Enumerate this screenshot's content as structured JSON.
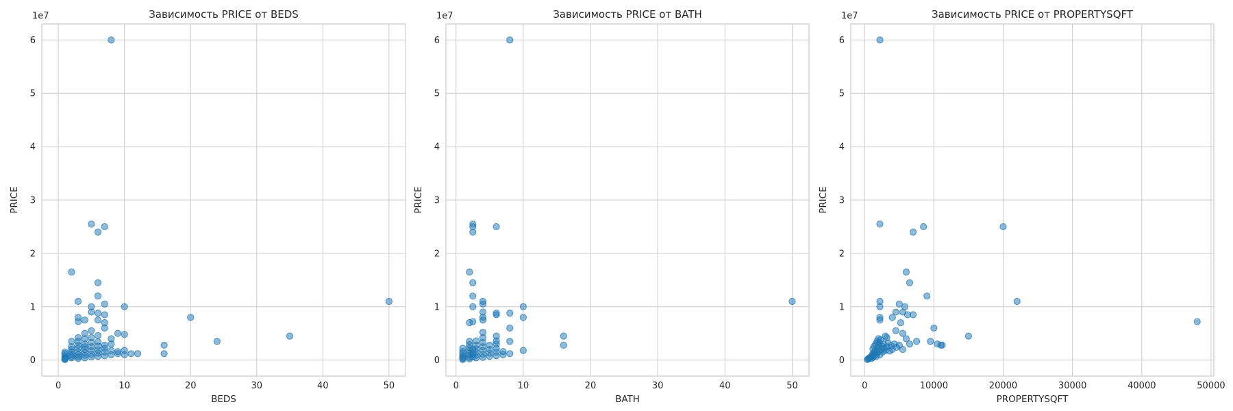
{
  "chart_data": [
    {
      "type": "scatter",
      "title": "Зависимость PRICE от BEDS",
      "xlabel": "BEDS",
      "ylabel": "PRICE",
      "y_offset_label": "1e7",
      "xlim": [
        -2.5,
        52.5
      ],
      "ylim": [
        -3000000,
        63000000
      ],
      "x_ticks": [
        0,
        10,
        20,
        30,
        40,
        50
      ],
      "x_tick_labels": [
        "0",
        "10",
        "20",
        "30",
        "40",
        "50"
      ],
      "y_ticks": [
        0,
        10000000,
        20000000,
        30000000,
        40000000,
        50000000,
        60000000
      ],
      "y_tick_labels": [
        "0",
        "1",
        "2",
        "3",
        "4",
        "5",
        "6"
      ],
      "grid": true,
      "color": "#1f77b4",
      "points": [
        [
          1,
          300000
        ],
        [
          1,
          500000
        ],
        [
          1,
          800000
        ],
        [
          1,
          1200000
        ],
        [
          1,
          1500000
        ],
        [
          1,
          200000
        ],
        [
          1,
          100000
        ],
        [
          2,
          400000
        ],
        [
          2,
          700000
        ],
        [
          2,
          1000000
        ],
        [
          2,
          1500000
        ],
        [
          2,
          2000000
        ],
        [
          2,
          2500000
        ],
        [
          2,
          3500000
        ],
        [
          2,
          16500000
        ],
        [
          3,
          300000
        ],
        [
          3,
          600000
        ],
        [
          3,
          1000000
        ],
        [
          3,
          1500000
        ],
        [
          3,
          2200000
        ],
        [
          3,
          2800000
        ],
        [
          3,
          3500000
        ],
        [
          3,
          4200000
        ],
        [
          3,
          7200000
        ],
        [
          3,
          8000000
        ],
        [
          3,
          11000000
        ],
        [
          4,
          400000
        ],
        [
          4,
          900000
        ],
        [
          4,
          1400000
        ],
        [
          4,
          2000000
        ],
        [
          4,
          2500000
        ],
        [
          4,
          3000000
        ],
        [
          4,
          4000000
        ],
        [
          4,
          5000000
        ],
        [
          4,
          7500000
        ],
        [
          5,
          600000
        ],
        [
          5,
          1100000
        ],
        [
          5,
          1800000
        ],
        [
          5,
          2500000
        ],
        [
          5,
          3300000
        ],
        [
          5,
          4200000
        ],
        [
          5,
          5500000
        ],
        [
          5,
          9000000
        ],
        [
          5,
          10000000
        ],
        [
          5,
          25500000
        ],
        [
          6,
          700000
        ],
        [
          6,
          1300000
        ],
        [
          6,
          1900000
        ],
        [
          6,
          2600000
        ],
        [
          6,
          3400000
        ],
        [
          6,
          4600000
        ],
        [
          6,
          7500000
        ],
        [
          6,
          8800000
        ],
        [
          6,
          12000000
        ],
        [
          6,
          14500000
        ],
        [
          6,
          24000000
        ],
        [
          7,
          800000
        ],
        [
          7,
          1500000
        ],
        [
          7,
          2200000
        ],
        [
          7,
          2800000
        ],
        [
          7,
          6000000
        ],
        [
          7,
          7000000
        ],
        [
          7,
          8500000
        ],
        [
          7,
          10500000
        ],
        [
          7,
          25000000
        ],
        [
          8,
          1000000
        ],
        [
          8,
          1800000
        ],
        [
          8,
          3000000
        ],
        [
          8,
          4000000
        ],
        [
          8,
          60000000
        ],
        [
          9,
          1200000
        ],
        [
          9,
          1600000
        ],
        [
          9,
          5000000
        ],
        [
          10,
          1000000
        ],
        [
          10,
          1800000
        ],
        [
          10,
          4800000
        ],
        [
          10,
          10000000
        ],
        [
          11,
          1200000
        ],
        [
          12,
          1200000
        ],
        [
          16,
          1200000
        ],
        [
          16,
          2800000
        ],
        [
          20,
          8000000
        ],
        [
          24,
          3500000
        ],
        [
          35,
          4500000
        ],
        [
          50,
          11000000
        ]
      ]
    },
    {
      "type": "scatter",
      "title": "Зависимость PRICE от BATH",
      "xlabel": "BATH",
      "ylabel": "PRICE",
      "y_offset_label": "1e7",
      "xlim": [
        -1.5,
        52.5
      ],
      "ylim": [
        -3000000,
        63000000
      ],
      "x_ticks": [
        0,
        10,
        20,
        30,
        40,
        50
      ],
      "x_tick_labels": [
        "0",
        "10",
        "20",
        "30",
        "40",
        "50"
      ],
      "y_ticks": [
        0,
        10000000,
        20000000,
        30000000,
        40000000,
        50000000,
        60000000
      ],
      "y_tick_labels": [
        "0",
        "1",
        "2",
        "3",
        "4",
        "5",
        "6"
      ],
      "grid": true,
      "color": "#1f77b4",
      "points": [
        [
          1,
          100000
        ],
        [
          1,
          300000
        ],
        [
          1,
          500000
        ],
        [
          1,
          800000
        ],
        [
          1,
          1200000
        ],
        [
          1,
          1600000
        ],
        [
          1,
          2200000
        ],
        [
          2,
          200000
        ],
        [
          2,
          500000
        ],
        [
          2,
          900000
        ],
        [
          2,
          1300000
        ],
        [
          2,
          1800000
        ],
        [
          2,
          2300000
        ],
        [
          2,
          2900000
        ],
        [
          2,
          3500000
        ],
        [
          2,
          7000000
        ],
        [
          2,
          16500000
        ],
        [
          2.5,
          600000
        ],
        [
          2.5,
          1200000
        ],
        [
          2.5,
          2000000
        ],
        [
          2.5,
          7200000
        ],
        [
          2.5,
          10000000
        ],
        [
          2.5,
          12000000
        ],
        [
          2.5,
          14500000
        ],
        [
          2.5,
          24000000
        ],
        [
          2.5,
          25000000
        ],
        [
          2.5,
          25500000
        ],
        [
          3,
          400000
        ],
        [
          3,
          900000
        ],
        [
          3,
          1500000
        ],
        [
          3,
          2100000
        ],
        [
          3,
          2800000
        ],
        [
          3,
          3600000
        ],
        [
          4,
          500000
        ],
        [
          4,
          1100000
        ],
        [
          4,
          1800000
        ],
        [
          4,
          2500000
        ],
        [
          4,
          3300000
        ],
        [
          4,
          4200000
        ],
        [
          4,
          5200000
        ],
        [
          4,
          7500000
        ],
        [
          4,
          8000000
        ],
        [
          4,
          9000000
        ],
        [
          4,
          10500000
        ],
        [
          4,
          11000000
        ],
        [
          5,
          700000
        ],
        [
          5,
          1300000
        ],
        [
          5,
          2000000
        ],
        [
          5,
          2800000
        ],
        [
          6,
          800000
        ],
        [
          6,
          1500000
        ],
        [
          6,
          2200000
        ],
        [
          6,
          3000000
        ],
        [
          6,
          3600000
        ],
        [
          6,
          4500000
        ],
        [
          6,
          8500000
        ],
        [
          6,
          8800000
        ],
        [
          6,
          25000000
        ],
        [
          7,
          1000000
        ],
        [
          7,
          1600000
        ],
        [
          8,
          1200000
        ],
        [
          8,
          3500000
        ],
        [
          8,
          6000000
        ],
        [
          8,
          8800000
        ],
        [
          8,
          60000000
        ],
        [
          10,
          1800000
        ],
        [
          10,
          8000000
        ],
        [
          10,
          10000000
        ],
        [
          16,
          2800000
        ],
        [
          16,
          4500000
        ],
        [
          50,
          11000000
        ]
      ]
    },
    {
      "type": "scatter",
      "title": "Зависимость PRICE от PROPERTYSQFT",
      "xlabel": "PROPERTYSQFT",
      "ylabel": "PRICE",
      "y_offset_label": "1e7",
      "xlim": [
        -2000,
        50400
      ],
      "ylim": [
        -3000000,
        63000000
      ],
      "x_ticks": [
        0,
        10000,
        20000,
        30000,
        40000,
        50000
      ],
      "x_tick_labels": [
        "0",
        "10000",
        "20000",
        "30000",
        "40000",
        "50000"
      ],
      "y_ticks": [
        0,
        10000000,
        20000000,
        30000000,
        40000000,
        50000000,
        60000000
      ],
      "y_tick_labels": [
        "0",
        "1",
        "2",
        "3",
        "4",
        "5",
        "6"
      ],
      "grid": true,
      "color": "#1f77b4",
      "points": [
        [
          400,
          100000
        ],
        [
          500,
          200000
        ],
        [
          600,
          300000
        ],
        [
          700,
          400000
        ],
        [
          800,
          500000
        ],
        [
          900,
          600000
        ],
        [
          1000,
          700000
        ],
        [
          1000,
          300000
        ],
        [
          1100,
          900000
        ],
        [
          1200,
          500000
        ],
        [
          1200,
          1200000
        ],
        [
          1300,
          800000
        ],
        [
          1400,
          1500000
        ],
        [
          1500,
          1000000
        ],
        [
          1600,
          1800000
        ],
        [
          1700,
          700000
        ],
        [
          1800,
          1300000
        ],
        [
          1900,
          2200000
        ],
        [
          2000,
          1600000
        ],
        [
          2000,
          2800000
        ],
        [
          2100,
          3300000
        ],
        [
          2200,
          1000000
        ],
        [
          2300,
          3800000
        ],
        [
          2400,
          2000000
        ],
        [
          2500,
          2600000
        ],
        [
          2600,
          1500000
        ],
        [
          2700,
          3000000
        ],
        [
          2800,
          2200000
        ],
        [
          3000,
          1800000
        ],
        [
          3200,
          2500000
        ],
        [
          3400,
          3200000
        ],
        [
          3600,
          1700000
        ],
        [
          3800,
          2700000
        ],
        [
          4000,
          2000000
        ],
        [
          4300,
          3000000
        ],
        [
          4600,
          2400000
        ],
        [
          5000,
          2800000
        ],
        [
          5500,
          2000000
        ],
        [
          1200,
          2100000
        ],
        [
          1400,
          2600000
        ],
        [
          1600,
          3000000
        ],
        [
          1800,
          3500000
        ],
        [
          2000,
          4000000
        ],
        [
          2200,
          60000000
        ],
        [
          2200,
          25500000
        ],
        [
          2200,
          11000000
        ],
        [
          2200,
          10000000
        ],
        [
          2200,
          8000000
        ],
        [
          2200,
          7500000
        ],
        [
          3000,
          4500000
        ],
        [
          3200,
          4200000
        ],
        [
          4000,
          8000000
        ],
        [
          4500,
          5500000
        ],
        [
          4500,
          9000000
        ],
        [
          5000,
          10500000
        ],
        [
          5200,
          7000000
        ],
        [
          5500,
          5000000
        ],
        [
          5500,
          9000000
        ],
        [
          5800,
          10000000
        ],
        [
          6000,
          16500000
        ],
        [
          6000,
          4000000
        ],
        [
          6200,
          8500000
        ],
        [
          6500,
          14500000
        ],
        [
          6500,
          3000000
        ],
        [
          7000,
          24000000
        ],
        [
          7000,
          8500000
        ],
        [
          7500,
          3500000
        ],
        [
          8500,
          25000000
        ],
        [
          9000,
          12000000
        ],
        [
          9500,
          3500000
        ],
        [
          10000,
          6000000
        ],
        [
          10500,
          3000000
        ],
        [
          11000,
          2800000
        ],
        [
          11200,
          2800000
        ],
        [
          15000,
          4500000
        ],
        [
          20000,
          25000000
        ],
        [
          22000,
          11000000
        ],
        [
          48000,
          7200000
        ]
      ]
    }
  ]
}
